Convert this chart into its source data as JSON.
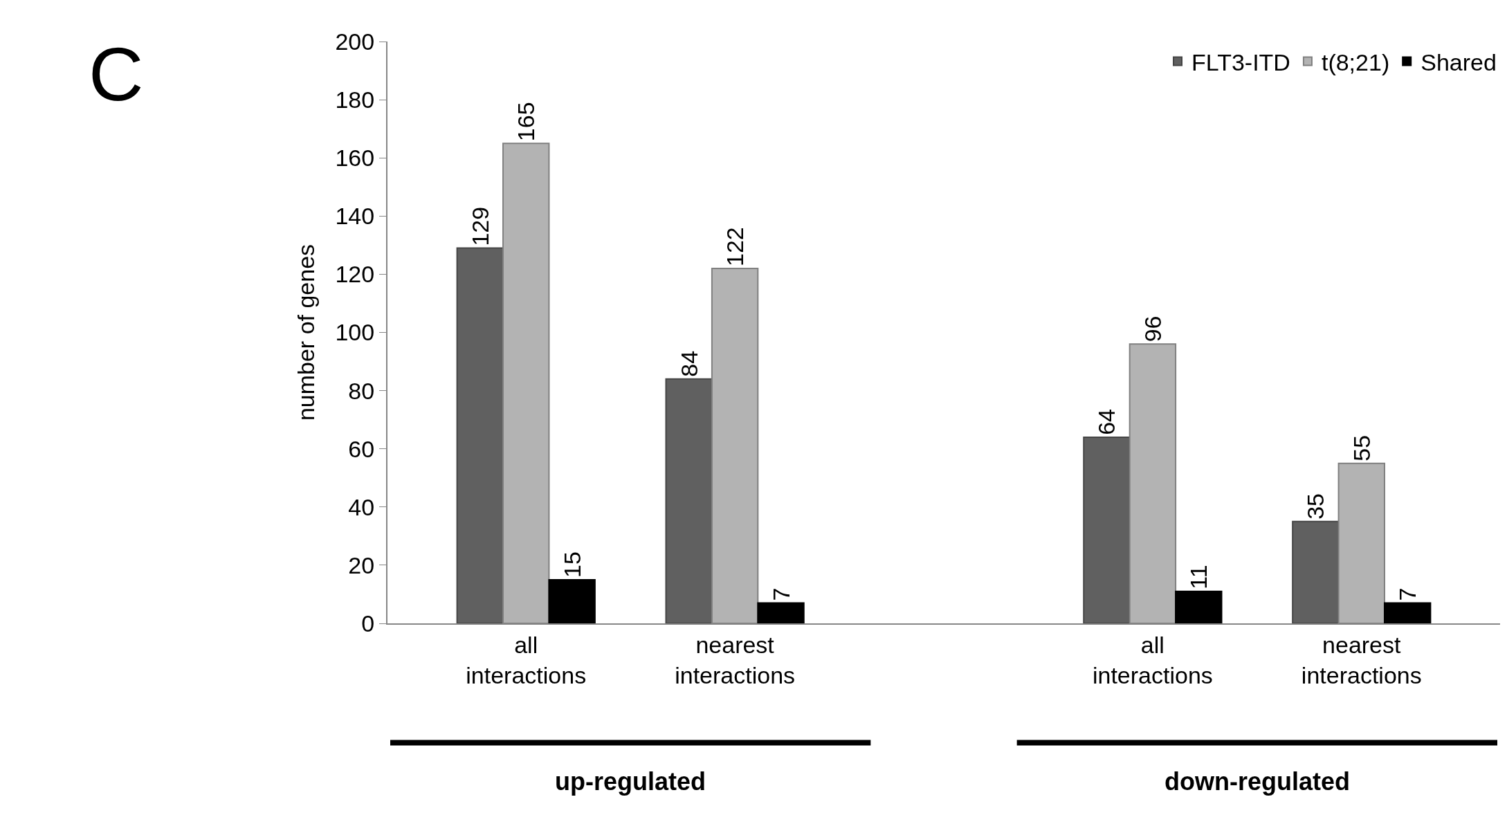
{
  "chart_data": {
    "type": "bar",
    "ylabel": "number of genes",
    "categories": [
      "all interactions",
      "nearest interactions",
      null,
      "all interactions",
      "nearest interactions"
    ],
    "series": [
      {
        "name": "FLT3-ITD",
        "color": "#606060",
        "values": [
          129,
          84,
          null,
          64,
          35
        ]
      },
      {
        "name": "t(8;21)",
        "color": "#b3b3b3",
        "values": [
          165,
          122,
          null,
          96,
          55
        ]
      },
      {
        "name": "Shared",
        "color": "#000000",
        "values": [
          15,
          7,
          null,
          11,
          7
        ]
      }
    ],
    "ylim": [
      0,
      200
    ],
    "yticks": [
      0,
      20,
      40,
      60,
      80,
      100,
      120,
      140,
      160,
      180,
      200
    ],
    "legend": "top right",
    "data_labels": true,
    "annotations": [
      "C",
      "up-regulated",
      "down-regulated"
    ]
  }
}
